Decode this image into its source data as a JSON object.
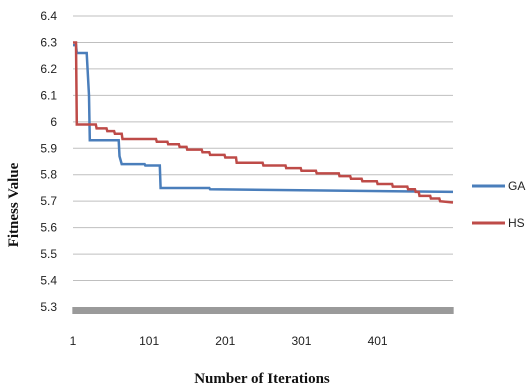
{
  "chart_data": {
    "type": "line",
    "title": "",
    "xlabel": "Number of Iterations",
    "ylabel": "Fitness Value",
    "xlim": [
      1,
      500
    ],
    "ylim": [
      5.3,
      6.4
    ],
    "y_ticks": [
      "5.3",
      "5.4",
      "5.5",
      "5.6",
      "5.7",
      "5.8",
      "5.9",
      "6",
      "6.1",
      "6.2",
      "6.3",
      "6.4"
    ],
    "x_ticks": [
      "1",
      "101",
      "201",
      "301",
      "401"
    ],
    "grid": "horizontal",
    "legend_position": "right",
    "series": [
      {
        "name": "GA",
        "color": "#4a7ebb",
        "points": [
          [
            1,
            6.29
          ],
          [
            5,
            6.29
          ],
          [
            6,
            6.26
          ],
          [
            19,
            6.26
          ],
          [
            22,
            6.1
          ],
          [
            23,
            5.93
          ],
          [
            61,
            5.93
          ],
          [
            62,
            5.87
          ],
          [
            65,
            5.84
          ],
          [
            95,
            5.84
          ],
          [
            96,
            5.835
          ],
          [
            115,
            5.835
          ],
          [
            116,
            5.75
          ],
          [
            180,
            5.75
          ],
          [
            181,
            5.745
          ],
          [
            500,
            5.735
          ]
        ]
      },
      {
        "name": "HS",
        "color": "#be4b48",
        "points": [
          [
            1,
            6.3
          ],
          [
            5,
            6.3
          ],
          [
            6,
            5.99
          ],
          [
            31,
            5.99
          ],
          [
            32,
            5.975
          ],
          [
            45,
            5.975
          ],
          [
            46,
            5.965
          ],
          [
            55,
            5.965
          ],
          [
            56,
            5.955
          ],
          [
            65,
            5.955
          ],
          [
            66,
            5.935
          ],
          [
            110,
            5.935
          ],
          [
            111,
            5.925
          ],
          [
            125,
            5.925
          ],
          [
            126,
            5.915
          ],
          [
            140,
            5.915
          ],
          [
            141,
            5.905
          ],
          [
            150,
            5.905
          ],
          [
            151,
            5.895
          ],
          [
            170,
            5.895
          ],
          [
            171,
            5.885
          ],
          [
            180,
            5.885
          ],
          [
            181,
            5.875
          ],
          [
            200,
            5.875
          ],
          [
            201,
            5.865
          ],
          [
            215,
            5.865
          ],
          [
            216,
            5.845
          ],
          [
            250,
            5.845
          ],
          [
            251,
            5.835
          ],
          [
            280,
            5.835
          ],
          [
            281,
            5.825
          ],
          [
            300,
            5.825
          ],
          [
            301,
            5.815
          ],
          [
            320,
            5.815
          ],
          [
            321,
            5.805
          ],
          [
            350,
            5.805
          ],
          [
            351,
            5.795
          ],
          [
            365,
            5.795
          ],
          [
            366,
            5.785
          ],
          [
            380,
            5.785
          ],
          [
            381,
            5.775
          ],
          [
            400,
            5.775
          ],
          [
            401,
            5.765
          ],
          [
            420,
            5.765
          ],
          [
            421,
            5.755
          ],
          [
            440,
            5.755
          ],
          [
            441,
            5.745
          ],
          [
            450,
            5.745
          ],
          [
            451,
            5.735
          ],
          [
            455,
            5.735
          ],
          [
            456,
            5.72
          ],
          [
            470,
            5.72
          ],
          [
            471,
            5.71
          ],
          [
            482,
            5.71
          ],
          [
            483,
            5.7
          ],
          [
            500,
            5.695
          ]
        ]
      }
    ]
  }
}
